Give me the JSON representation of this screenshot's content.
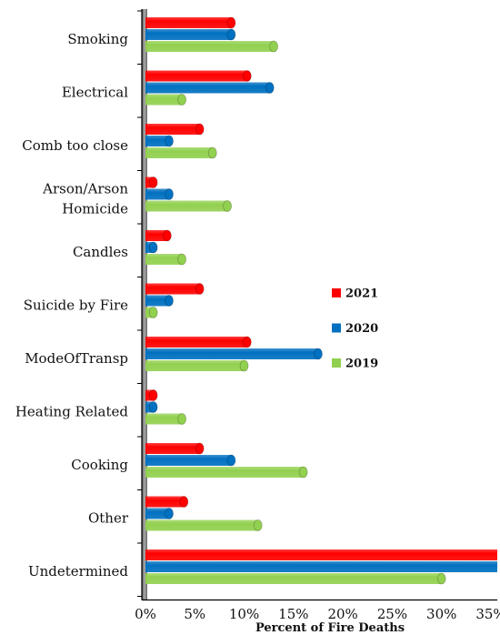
{
  "chart_data": {
    "type": "bar",
    "orientation": "horizontal",
    "categories": [
      "Smoking",
      "Electrical",
      "Comb too close",
      "Arson/Arson Homicide",
      "Candles",
      "Suicide by Fire",
      "ModeOfTransp",
      "Heating Related",
      "Cooking",
      "Other",
      "Undetermined"
    ],
    "category_lines": [
      [
        "Smoking"
      ],
      [
        "Electrical"
      ],
      [
        "Comb too close"
      ],
      [
        "Arson/Arson",
        "Homicide"
      ],
      [
        "Candles"
      ],
      [
        "Suicide by Fire"
      ],
      [
        "ModeOfTransp"
      ],
      [
        "Heating Related"
      ],
      [
        "Cooking"
      ],
      [
        "Other"
      ],
      [
        "Undetermined"
      ]
    ],
    "series": [
      {
        "name": "2021",
        "color": "#ff0000",
        "values": [
          8.7,
          10.3,
          5.5,
          0.8,
          2.2,
          5.5,
          10.3,
          0.8,
          5.5,
          3.9,
          37.0
        ]
      },
      {
        "name": "2020",
        "color": "#0070c0",
        "values": [
          8.7,
          12.6,
          2.4,
          2.4,
          0.8,
          2.4,
          17.5,
          0.8,
          8.7,
          2.4,
          37.0
        ]
      },
      {
        "name": "2019",
        "color": "#92d050",
        "values": [
          13.0,
          3.7,
          6.8,
          8.3,
          3.7,
          0.8,
          10.0,
          3.7,
          16.0,
          11.4,
          30.0
        ]
      }
    ],
    "xlim": [
      0,
      36.5
    ],
    "xticks": [
      "0%",
      "5%",
      "10%",
      "15%",
      "20%",
      "25%",
      "30%",
      "35%"
    ],
    "xtick_values": [
      0,
      5,
      10,
      15,
      20,
      25,
      30,
      35
    ],
    "xlabel": "Percent of Fire Deaths",
    "legend_position": "right",
    "grid": false
  }
}
